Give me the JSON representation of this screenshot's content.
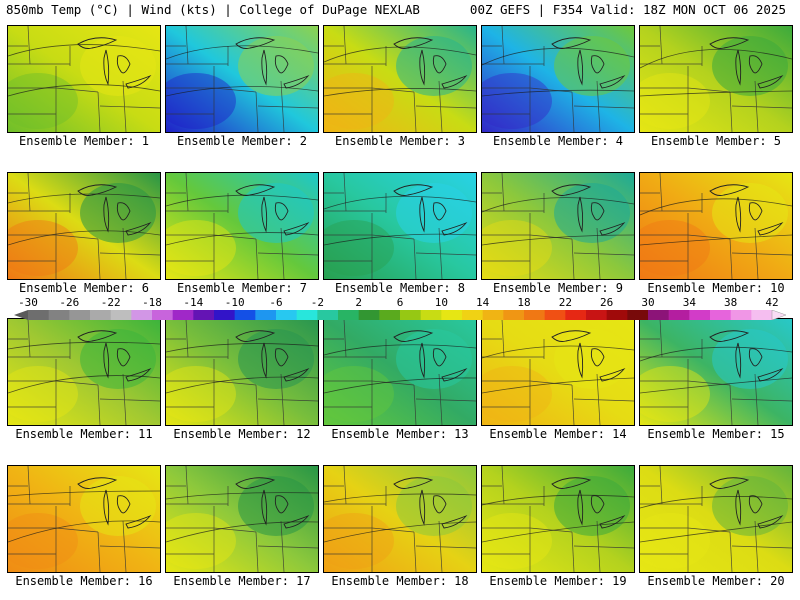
{
  "header": {
    "left": "850mb Temp (°C) | Wind (kts) | College of DuPage NEXLAB",
    "right": "00Z GEFS | F354 Valid: 18Z MON OCT 06 2025"
  },
  "members": [
    {
      "label": "Ensemble Member: 1",
      "colors": [
        "#6fbf2a",
        "#c8dc14",
        "#e6e614"
      ]
    },
    {
      "label": "Ensemble Member: 2",
      "colors": [
        "#2020c8",
        "#20c8dc",
        "#8cd250"
      ]
    },
    {
      "label": "Ensemble Member: 3",
      "colors": [
        "#f0b414",
        "#c8dc14",
        "#28b48c"
      ]
    },
    {
      "label": "Ensemble Member: 4",
      "colors": [
        "#3228c8",
        "#1eb4e6",
        "#6ec83c"
      ]
    },
    {
      "label": "Ensemble Member: 5",
      "colors": [
        "#e6e614",
        "#b4d21e",
        "#3caa3c"
      ]
    },
    {
      "label": "Ensemble Member: 6",
      "colors": [
        "#f07814",
        "#dcdc14",
        "#289646"
      ]
    },
    {
      "label": "Ensemble Member: 7",
      "colors": [
        "#e6e614",
        "#64c83c",
        "#1ec8c8"
      ]
    },
    {
      "label": "Ensemble Member: 8",
      "colors": [
        "#28a050",
        "#28c8a0",
        "#28d2e6"
      ]
    },
    {
      "label": "Ensemble Member: 9",
      "colors": [
        "#e6dc14",
        "#8cc83c",
        "#1eaa96"
      ]
    },
    {
      "label": "Ensemble Member: 10",
      "colors": [
        "#f07814",
        "#f0aa14",
        "#e6e614"
      ]
    },
    {
      "label": "Ensemble Member: 11",
      "colors": [
        "#e6e614",
        "#a0c832",
        "#3cb43c"
      ]
    },
    {
      "label": "Ensemble Member: 12",
      "colors": [
        "#e6e614",
        "#78be3c",
        "#289650"
      ]
    },
    {
      "label": "Ensemble Member: 13",
      "colors": [
        "#64c83c",
        "#32aa64",
        "#28c8a0"
      ]
    },
    {
      "label": "Ensemble Member: 14",
      "colors": [
        "#f0b414",
        "#e6dc14",
        "#e6e614"
      ]
    },
    {
      "label": "Ensemble Member: 15",
      "colors": [
        "#e6e614",
        "#3cb464",
        "#28c8c8"
      ]
    },
    {
      "label": "Ensemble Member: 16",
      "colors": [
        "#f08c14",
        "#f0b414",
        "#e6e614"
      ]
    },
    {
      "label": "Ensemble Member: 17",
      "colors": [
        "#e6e614",
        "#8cc83c",
        "#289646"
      ]
    },
    {
      "label": "Ensemble Member: 18",
      "colors": [
        "#f0a014",
        "#e6d214",
        "#8cc83c"
      ]
    },
    {
      "label": "Ensemble Member: 19",
      "colors": [
        "#e6e614",
        "#b4d21e",
        "#3caa3c"
      ]
    },
    {
      "label": "Ensemble Member: 20",
      "colors": [
        "#e6e614",
        "#dcdc14",
        "#64b43c"
      ]
    }
  ],
  "colorbar": {
    "ticks": [
      "-30",
      "-26",
      "-22",
      "-18",
      "-14",
      "-10",
      "-6",
      "-2",
      "2",
      "6",
      "10",
      "14",
      "18",
      "22",
      "26",
      "30",
      "34",
      "38",
      "42"
    ],
    "colors": [
      "#6e6e6e",
      "#828282",
      "#969696",
      "#aaaaaa",
      "#bebebe",
      "#d296e6",
      "#c864dc",
      "#a028c8",
      "#6414b4",
      "#3214c8",
      "#1450e6",
      "#1e96f0",
      "#28c8f0",
      "#28e6dc",
      "#28c8a0",
      "#28b464",
      "#329632",
      "#5aaa1e",
      "#96c814",
      "#c8dc14",
      "#e6e614",
      "#f0d214",
      "#f0b414",
      "#f09614",
      "#f07814",
      "#f05014",
      "#e62814",
      "#c81414",
      "#a00a0a",
      "#780a0a",
      "#8c1478",
      "#b41ea0",
      "#d23cc8",
      "#e664dc",
      "#f096e6",
      "#f5bef0"
    ]
  }
}
